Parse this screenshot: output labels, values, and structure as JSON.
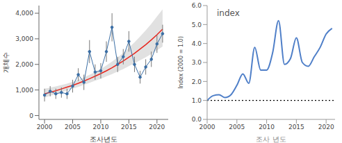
{
  "chart_data": [
    {
      "type": "line",
      "x_label": "조사년도",
      "y_label": "개체수",
      "x": [
        2000,
        2001,
        2002,
        2003,
        2004,
        2005,
        2006,
        2007,
        2008,
        2009,
        2010,
        2011,
        2012,
        2013,
        2014,
        2015,
        2016,
        2017,
        2018,
        2019,
        2020,
        2021
      ],
      "series": [
        {
          "color": "#3a6ea5",
          "marker": "circle",
          "line_style": "solid",
          "values": [
            800,
            950,
            850,
            900,
            850,
            1150,
            1600,
            1300,
            2500,
            1700,
            1750,
            2500,
            3450,
            2000,
            2300,
            2900,
            2000,
            1500,
            1900,
            2200,
            2800,
            3200
          ],
          "errors": [
            250,
            200,
            200,
            200,
            200,
            250,
            250,
            300,
            450,
            300,
            300,
            400,
            550,
            300,
            300,
            400,
            300,
            250,
            300,
            300,
            350,
            350
          ]
        },
        {
          "color": "#e8261e",
          "line_style": "solid",
          "values": [
            850,
            910,
            970,
            1040,
            1110,
            1180,
            1260,
            1350,
            1440,
            1540,
            1640,
            1750,
            1870,
            2000,
            2130,
            2280,
            2430,
            2600,
            2770,
            2960,
            3160,
            3380
          ]
        }
      ],
      "band": {
        "color": "#d9d9d9",
        "low": [
          700,
          770,
          840,
          910,
          980,
          1050,
          1120,
          1200,
          1280,
          1360,
          1440,
          1530,
          1620,
          1720,
          1820,
          1930,
          2040,
          2160,
          2280,
          2410,
          2550,
          2700
        ],
        "high": [
          1050,
          1090,
          1140,
          1190,
          1250,
          1320,
          1400,
          1490,
          1590,
          1700,
          1820,
          1960,
          2110,
          2270,
          2450,
          2650,
          2860,
          3090,
          3330,
          3590,
          3870,
          4150
        ]
      },
      "xlim": [
        1999,
        2022
      ],
      "xticks": [
        2000,
        2005,
        2010,
        2015,
        2020
      ],
      "ylim": [
        -150,
        4300
      ],
      "yticks": [
        0,
        {
          "value": 1000,
          "label": "1,000"
        },
        {
          "value": 2000,
          "label": "2,000"
        },
        {
          "value": 3000,
          "label": "3,000"
        },
        {
          "value": 4000,
          "label": "4,000"
        }
      ]
    },
    {
      "type": "line",
      "title": "index",
      "x_label": "조사 년도",
      "y_label": "Index (2000 = 1.0)",
      "x": [
        2000,
        2001,
        2002,
        2003,
        2004,
        2005,
        2006,
        2007,
        2008,
        2009,
        2010,
        2011,
        2012,
        2013,
        2014,
        2015,
        2016,
        2017,
        2018,
        2019,
        2020,
        2021
      ],
      "series": [
        {
          "color": "#4f7fc8",
          "line_style": "solid",
          "values": [
            1.0,
            1.25,
            1.3,
            1.15,
            1.3,
            1.8,
            2.4,
            1.9,
            3.8,
            2.6,
            2.6,
            3.5,
            5.2,
            2.9,
            3.2,
            4.3,
            3.0,
            2.8,
            3.3,
            3.8,
            4.5,
            4.8
          ]
        }
      ],
      "reference_line": {
        "value": 1.0,
        "color": "#000000",
        "line_style": "dotted"
      },
      "xlim": [
        2000,
        2021.5
      ],
      "xticks": [
        2000,
        2005,
        2010,
        2015,
        2020
      ],
      "ylim": [
        0,
        6
      ],
      "yticks": [
        {
          "value": 0,
          "label": "0.0"
        },
        {
          "value": 1,
          "label": "1.0"
        },
        {
          "value": 2,
          "label": "2.0"
        },
        {
          "value": 3,
          "label": "3.0"
        },
        {
          "value": 4,
          "label": "4.0"
        },
        {
          "value": 5,
          "label": "5.0"
        },
        {
          "value": 6,
          "label": "6.0"
        }
      ]
    }
  ]
}
